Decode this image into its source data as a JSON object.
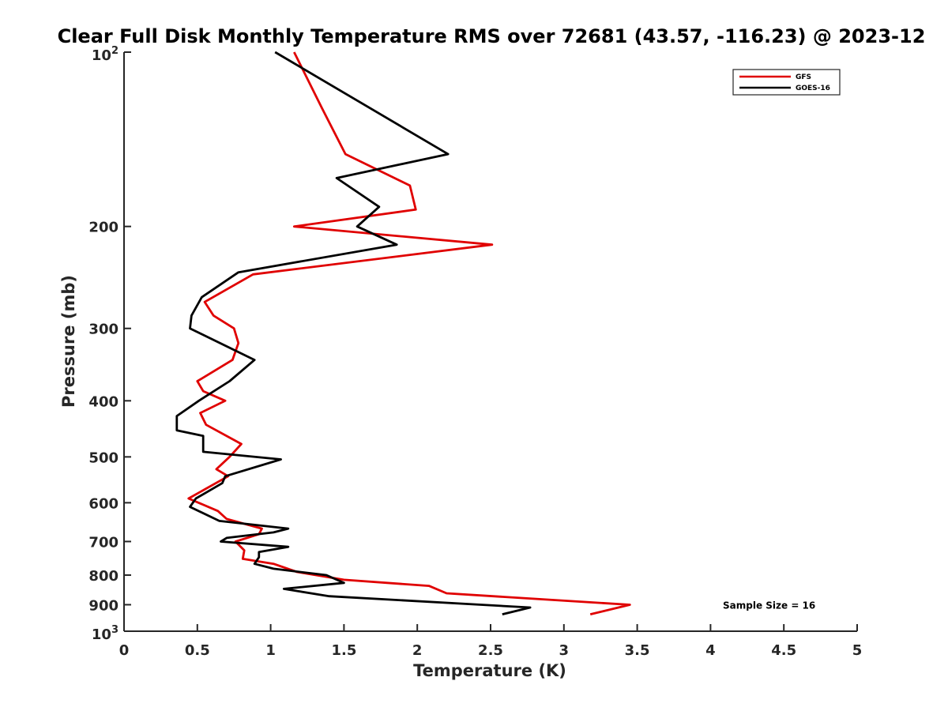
{
  "chart_data": {
    "type": "line",
    "title": "Clear Full Disk Monthly Temperature RMS over 72681 (43.57, -116.23) @ 2023-12",
    "xlabel": "Temperature (K)",
    "ylabel": "Pressure (mb)",
    "xlim": [
      0,
      5
    ],
    "ylim": [
      100,
      1000
    ],
    "y_scale": "log",
    "y_reversed": true,
    "x_ticks": [
      0,
      0.5,
      1,
      1.5,
      2,
      2.5,
      3,
      3.5,
      4,
      4.5,
      5
    ],
    "x_tick_labels": [
      "0",
      "0.5",
      "1",
      "1.5",
      "2",
      "2.5",
      "3",
      "3.5",
      "4",
      "4.5",
      "5"
    ],
    "y_ticks": [
      200,
      300,
      400,
      500,
      600,
      700,
      800,
      900
    ],
    "y_tick_labels": [
      "200",
      "300",
      "400",
      "500",
      "600",
      "700",
      "800",
      "900"
    ],
    "y_min_label": {
      "base": "10",
      "exp": "2"
    },
    "y_max_label": {
      "base": "10",
      "exp": "3"
    },
    "grid": false,
    "legend_position": "top-right",
    "series": [
      {
        "name": "GFS",
        "color": "#e00000",
        "points": [
          [
            1.16,
            100
          ],
          [
            1.35,
            125
          ],
          [
            1.51,
            150
          ],
          [
            1.95,
            170
          ],
          [
            1.99,
            187
          ],
          [
            1.16,
            200
          ],
          [
            2.51,
            215
          ],
          [
            0.88,
            242
          ],
          [
            0.55,
            270
          ],
          [
            0.61,
            285
          ],
          [
            0.75,
            300
          ],
          [
            0.78,
            318
          ],
          [
            0.74,
            340
          ],
          [
            0.5,
            370
          ],
          [
            0.54,
            385
          ],
          [
            0.69,
            400
          ],
          [
            0.52,
            420
          ],
          [
            0.56,
            440
          ],
          [
            0.8,
            475
          ],
          [
            0.72,
            500
          ],
          [
            0.63,
            525
          ],
          [
            0.71,
            540
          ],
          [
            0.44,
            590
          ],
          [
            0.64,
            620
          ],
          [
            0.7,
            640
          ],
          [
            0.94,
            665
          ],
          [
            0.92,
            680
          ],
          [
            0.76,
            700
          ],
          [
            0.82,
            725
          ],
          [
            0.81,
            750
          ],
          [
            1.02,
            765
          ],
          [
            1.18,
            790
          ],
          [
            1.5,
            815
          ],
          [
            2.08,
            835
          ],
          [
            2.2,
            860
          ],
          [
            3.45,
            900
          ],
          [
            3.18,
            935
          ]
        ]
      },
      {
        "name": "GOES-16",
        "color": "#000000",
        "points": [
          [
            1.03,
            100
          ],
          [
            2.21,
            150
          ],
          [
            1.45,
            165
          ],
          [
            1.74,
            185
          ],
          [
            1.59,
            200
          ],
          [
            1.86,
            215
          ],
          [
            0.78,
            240
          ],
          [
            0.53,
            265
          ],
          [
            0.46,
            285
          ],
          [
            0.45,
            300
          ],
          [
            0.89,
            340
          ],
          [
            0.72,
            370
          ],
          [
            0.51,
            400
          ],
          [
            0.36,
            425
          ],
          [
            0.36,
            450
          ],
          [
            0.54,
            460
          ],
          [
            0.54,
            490
          ],
          [
            1.07,
            505
          ],
          [
            0.69,
            540
          ],
          [
            0.67,
            555
          ],
          [
            0.49,
            590
          ],
          [
            0.45,
            610
          ],
          [
            0.65,
            645
          ],
          [
            1.12,
            665
          ],
          [
            1.02,
            675
          ],
          [
            0.7,
            690
          ],
          [
            0.66,
            700
          ],
          [
            1.12,
            715
          ],
          [
            0.92,
            730
          ],
          [
            0.92,
            745
          ],
          [
            0.89,
            765
          ],
          [
            1.02,
            780
          ],
          [
            1.38,
            800
          ],
          [
            1.5,
            825
          ],
          [
            1.09,
            845
          ],
          [
            1.4,
            870
          ],
          [
            2.77,
            910
          ],
          [
            2.58,
            935
          ]
        ]
      }
    ],
    "annotations": [
      {
        "text": "Sample Size = 16",
        "x": 4.4,
        "y": 900
      }
    ]
  }
}
